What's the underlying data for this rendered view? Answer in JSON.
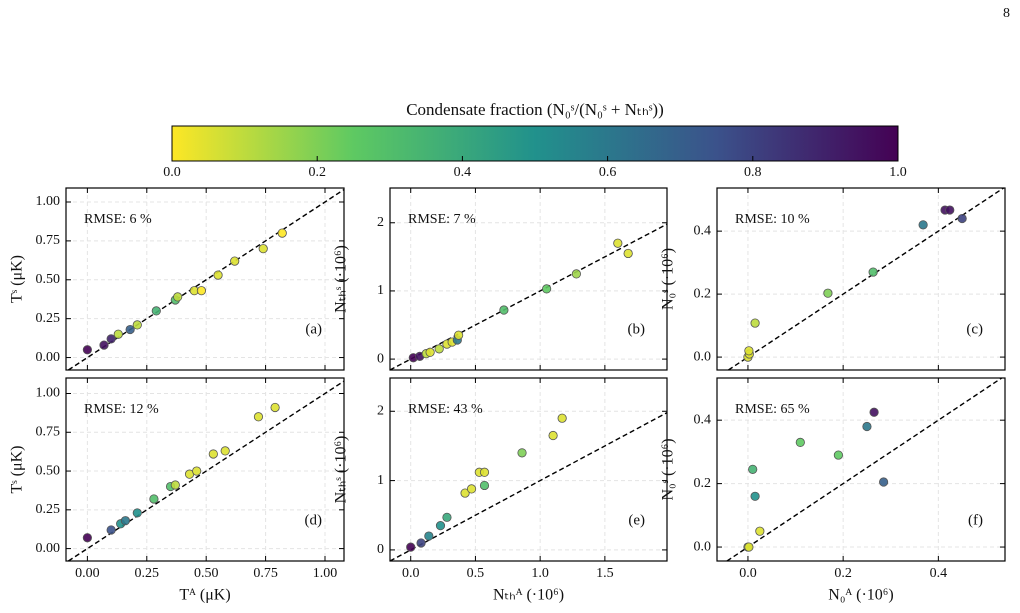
{
  "page_number": "8",
  "colorbar": {
    "label": "Condensate fraction (N₀ˢ/(N₀ˢ + Nₜₕˢ))",
    "lim": [
      0,
      1
    ],
    "ticks": [
      {
        "value": 0,
        "label": "0.0"
      },
      0.2,
      0.4,
      0.6,
      0.8,
      {
        "value": 1,
        "label": "1.0"
      }
    ],
    "colormap": [
      "#fde725",
      "#5ec962",
      "#21918c",
      "#3b528b",
      "#440154"
    ]
  },
  "chart_data": [
    {
      "type": "scatter",
      "panel": "(a)",
      "annotation": "RMSE: 6 %",
      "ylabel": "Tˢ (μK)",
      "grid": true,
      "diagonal": true,
      "show_xticklabels": false,
      "xlim": [
        -0.09,
        1.08
      ],
      "ylim": [
        -0.08,
        1.09
      ],
      "xticks": [
        0,
        0.25,
        0.5,
        0.75,
        1
      ],
      "yticks": [
        {
          "value": 0,
          "label": "0.00"
        },
        {
          "value": 0.25,
          "label": "0.25"
        },
        {
          "value": 0.5,
          "label": "0.50"
        },
        {
          "value": 0.75,
          "label": "0.75"
        },
        {
          "value": 1,
          "label": "1.00"
        }
      ],
      "x": [
        0,
        0.07,
        0.1,
        0.13,
        0.18,
        0.21,
        0.29,
        0.37,
        0.38,
        0.45,
        0.48,
        0.55,
        0.62,
        0.74,
        0.82
      ],
      "values": [
        0.05,
        0.08,
        0.12,
        0.15,
        0.18,
        0.21,
        0.3,
        0.37,
        0.39,
        0.43,
        0.43,
        0.53,
        0.62,
        0.7,
        0.8
      ],
      "fraction": [
        1,
        0.95,
        0.9,
        0.1,
        0.7,
        0.1,
        0.35,
        0.3,
        0.1,
        0.05,
        0,
        0.05,
        0.05,
        0.05,
        0
      ]
    },
    {
      "type": "scatter",
      "panel": "(b)",
      "annotation": "RMSE: 7 %",
      "ylabel": "Nₜₕˢ (·10⁶)",
      "grid": true,
      "diagonal": true,
      "show_xticklabels": false,
      "xlim": [
        -0.16,
        1.98
      ],
      "ylim": [
        -0.16,
        2.51
      ],
      "xticks": [
        0,
        0.5,
        1,
        1.5
      ],
      "yticks": [
        0,
        1,
        2
      ],
      "x": [
        0.02,
        0.07,
        0.12,
        0.15,
        0.22,
        0.28,
        0.32,
        0.36,
        0.37,
        0.72,
        1.05,
        1.28,
        1.6,
        1.68
      ],
      "values": [
        0.02,
        0.04,
        0.08,
        0.1,
        0.15,
        0.22,
        0.25,
        0.28,
        0.35,
        0.72,
        1.03,
        1.25,
        1.7,
        1.55
      ],
      "fraction": [
        1,
        0.95,
        0.1,
        0.05,
        0.1,
        0.05,
        0.05,
        0.6,
        0.05,
        0.3,
        0.25,
        0.15,
        0.05,
        0.05
      ]
    },
    {
      "type": "scatter",
      "panel": "(c)",
      "annotation": "RMSE: 10 %",
      "ylabel": "N₀ˢ (·10⁶)",
      "grid": true,
      "diagonal": true,
      "show_xticklabels": false,
      "xlim": [
        -0.065,
        0.54
      ],
      "ylim": [
        -0.041,
        0.537
      ],
      "xticks": [
        0,
        0.2,
        0.4
      ],
      "yticks": [
        {
          "value": 0,
          "label": "0.0"
        },
        0.2,
        0.4
      ],
      "x": [
        0,
        0.003,
        0.002,
        0.015,
        0.168,
        0.263,
        0.368,
        0.414,
        0.424,
        0.45
      ],
      "values": [
        0,
        0.01,
        0.02,
        0.108,
        0.203,
        0.27,
        0.42,
        0.467,
        0.467,
        0.44
      ],
      "fraction": [
        0.05,
        0.05,
        0.05,
        0.1,
        0.2,
        0.3,
        0.6,
        0.95,
        0.95,
        0.8
      ]
    },
    {
      "type": "scatter",
      "panel": "(d)",
      "annotation": "RMSE: 12 %",
      "ylabel": "Tˢ (μK)",
      "xlabel": "Tᴬ (μK)",
      "grid": true,
      "diagonal": true,
      "show_xticklabels": true,
      "xlim": [
        -0.09,
        1.08
      ],
      "ylim": [
        -0.08,
        1.1
      ],
      "xticks": [
        {
          "value": 0,
          "label": "0.00"
        },
        {
          "value": 0.25,
          "label": "0.25"
        },
        {
          "value": 0.5,
          "label": "0.50"
        },
        {
          "value": 0.75,
          "label": "0.75"
        },
        {
          "value": 1,
          "label": "1.00"
        }
      ],
      "yticks": [
        {
          "value": 0,
          "label": "0.00"
        },
        {
          "value": 0.25,
          "label": "0.25"
        },
        {
          "value": 0.5,
          "label": "0.50"
        },
        {
          "value": 0.75,
          "label": "0.75"
        },
        {
          "value": 1,
          "label": "1.00"
        }
      ],
      "x": [
        0,
        0.1,
        0.14,
        0.16,
        0.21,
        0.28,
        0.35,
        0.37,
        0.43,
        0.46,
        0.53,
        0.58,
        0.72,
        0.79
      ],
      "values": [
        0.07,
        0.12,
        0.16,
        0.18,
        0.23,
        0.32,
        0.4,
        0.41,
        0.48,
        0.5,
        0.61,
        0.63,
        0.85,
        0.91
      ],
      "fraction": [
        1,
        0.75,
        0.5,
        0.6,
        0.5,
        0.3,
        0.3,
        0.1,
        0.05,
        0.05,
        0.05,
        0.05,
        0.05,
        0.05
      ]
    },
    {
      "type": "scatter",
      "panel": "(e)",
      "annotation": "RMSE: 43 %",
      "ylabel": "Nₜₕˢ (·10⁶)",
      "xlabel": "Nₜₕᴬ (·10⁶)",
      "grid": true,
      "diagonal": true,
      "show_xticklabels": true,
      "xlim": [
        -0.16,
        1.98
      ],
      "ylim": [
        -0.16,
        2.48
      ],
      "xticks": [
        {
          "value": 0,
          "label": "0.0"
        },
        0.5,
        {
          "value": 1,
          "label": "1.0"
        },
        1.5
      ],
      "yticks": [
        0,
        1,
        2
      ],
      "x": [
        0,
        0.08,
        0.14,
        0.23,
        0.28,
        0.42,
        0.47,
        0.53,
        0.57,
        0.57,
        0.86,
        1.1,
        1.17
      ],
      "values": [
        0.04,
        0.1,
        0.2,
        0.35,
        0.47,
        0.82,
        0.88,
        1.12,
        1.12,
        0.93,
        1.4,
        1.65,
        1.9
      ],
      "fraction": [
        1,
        0.8,
        0.55,
        0.5,
        0.4,
        0.05,
        0.05,
        0.05,
        0.05,
        0.3,
        0.2,
        0.05,
        0.05
      ]
    },
    {
      "type": "scatter",
      "panel": "(f)",
      "annotation": "RMSE: 65 %",
      "ylabel": "N₀ˢ (·10⁶)",
      "xlabel": "N₀ᴬ (·10⁶)",
      "grid": true,
      "diagonal": true,
      "show_xticklabels": true,
      "xlim": [
        -0.065,
        0.54
      ],
      "ylim": [
        -0.044,
        0.533
      ],
      "xticks": [
        {
          "value": 0,
          "label": "0.0"
        },
        0.2,
        0.4
      ],
      "yticks": [
        {
          "value": 0,
          "label": "0.0"
        },
        0.2,
        0.4
      ],
      "x": [
        0,
        0.002,
        0.01,
        0.015,
        0.025,
        0.11,
        0.19,
        0.25,
        0.265,
        0.285
      ],
      "values": [
        0,
        0,
        0.245,
        0.16,
        0.05,
        0.33,
        0.29,
        0.38,
        0.425,
        0.205
      ],
      "fraction": [
        0.1,
        0.05,
        0.35,
        0.5,
        0.05,
        0.25,
        0.25,
        0.6,
        0.95,
        0.7
      ]
    }
  ]
}
